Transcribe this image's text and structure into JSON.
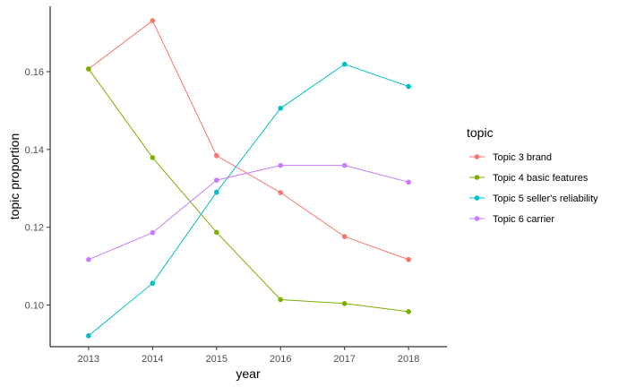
{
  "chart_data": {
    "type": "line",
    "xlabel": "year",
    "ylabel": "topic proportion",
    "x": [
      2013,
      2014,
      2015,
      2016,
      2017,
      2018
    ],
    "xlim": [
      2012.4,
      2018.6
    ],
    "ylim": [
      0.0893,
      0.1768
    ],
    "yticks": [
      0.1,
      0.12,
      0.14,
      0.16
    ],
    "ytick_labels": [
      "0.10",
      "0.12",
      "0.14",
      "0.16"
    ],
    "xtick_labels": [
      "2013",
      "2014",
      "2015",
      "2016",
      "2017",
      "2018"
    ],
    "grid": false,
    "legend_title": "topic",
    "legend_position": "right",
    "series": [
      {
        "name": "Topic 3 brand",
        "color": "#F8766D",
        "values": [
          0.1607,
          0.1731,
          0.1384,
          0.1289,
          0.1176,
          0.1117
        ]
      },
      {
        "name": "Topic 4 basic features",
        "color": "#7CAE00",
        "values": [
          0.1607,
          0.1379,
          0.1187,
          0.1014,
          0.1004,
          0.0983
        ]
      },
      {
        "name": "Topic 5 seller's reliability",
        "color": "#00BFC4",
        "values": [
          0.0921,
          0.1056,
          0.129,
          0.1506,
          0.1619,
          0.1562
        ]
      },
      {
        "name": "Topic 6 carrier",
        "color": "#C77CFF",
        "values": [
          0.1117,
          0.1186,
          0.1321,
          0.1359,
          0.1359,
          0.1316
        ]
      }
    ]
  }
}
